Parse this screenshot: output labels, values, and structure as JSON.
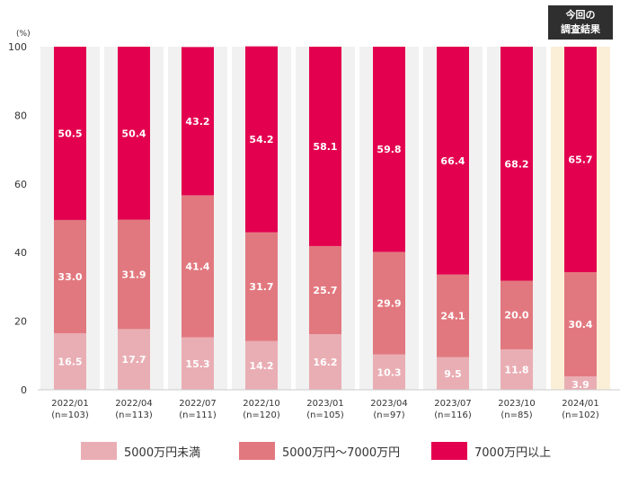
{
  "chart_data": {
    "type": "bar",
    "stacked": true,
    "unit_label": "(%)",
    "ylim": [
      0,
      100
    ],
    "yticks": [
      0,
      20,
      40,
      60,
      80,
      100
    ],
    "categories": [
      "2022/01",
      "2022/04",
      "2022/07",
      "2022/10",
      "2023/01",
      "2023/04",
      "2023/07",
      "2023/10",
      "2024/01"
    ],
    "sample_sizes": [
      "(n=103)",
      "(n=113)",
      "(n=111)",
      "(n=120)",
      "(n=105)",
      "(n=97)",
      "(n=116)",
      "(n=85)",
      "(n=102)"
    ],
    "series": [
      {
        "name": "5000万円未満",
        "color": "#e9aeb4",
        "values": [
          16.5,
          17.7,
          15.3,
          14.2,
          16.2,
          10.3,
          9.5,
          11.8,
          3.9
        ]
      },
      {
        "name": "5000万円～7000万円",
        "color": "#e2787f",
        "values": [
          33.0,
          31.9,
          41.4,
          31.7,
          25.7,
          29.9,
          24.1,
          20.0,
          30.4
        ]
      },
      {
        "name": "7000万円以上",
        "color": "#e3004f",
        "values": [
          50.5,
          50.4,
          43.2,
          54.2,
          58.1,
          59.8,
          66.4,
          68.2,
          65.7
        ]
      }
    ],
    "highlight_index": 8,
    "highlight_color": "#fbefd8",
    "badge": {
      "line1": "今回の",
      "line2": "調査結果"
    }
  }
}
